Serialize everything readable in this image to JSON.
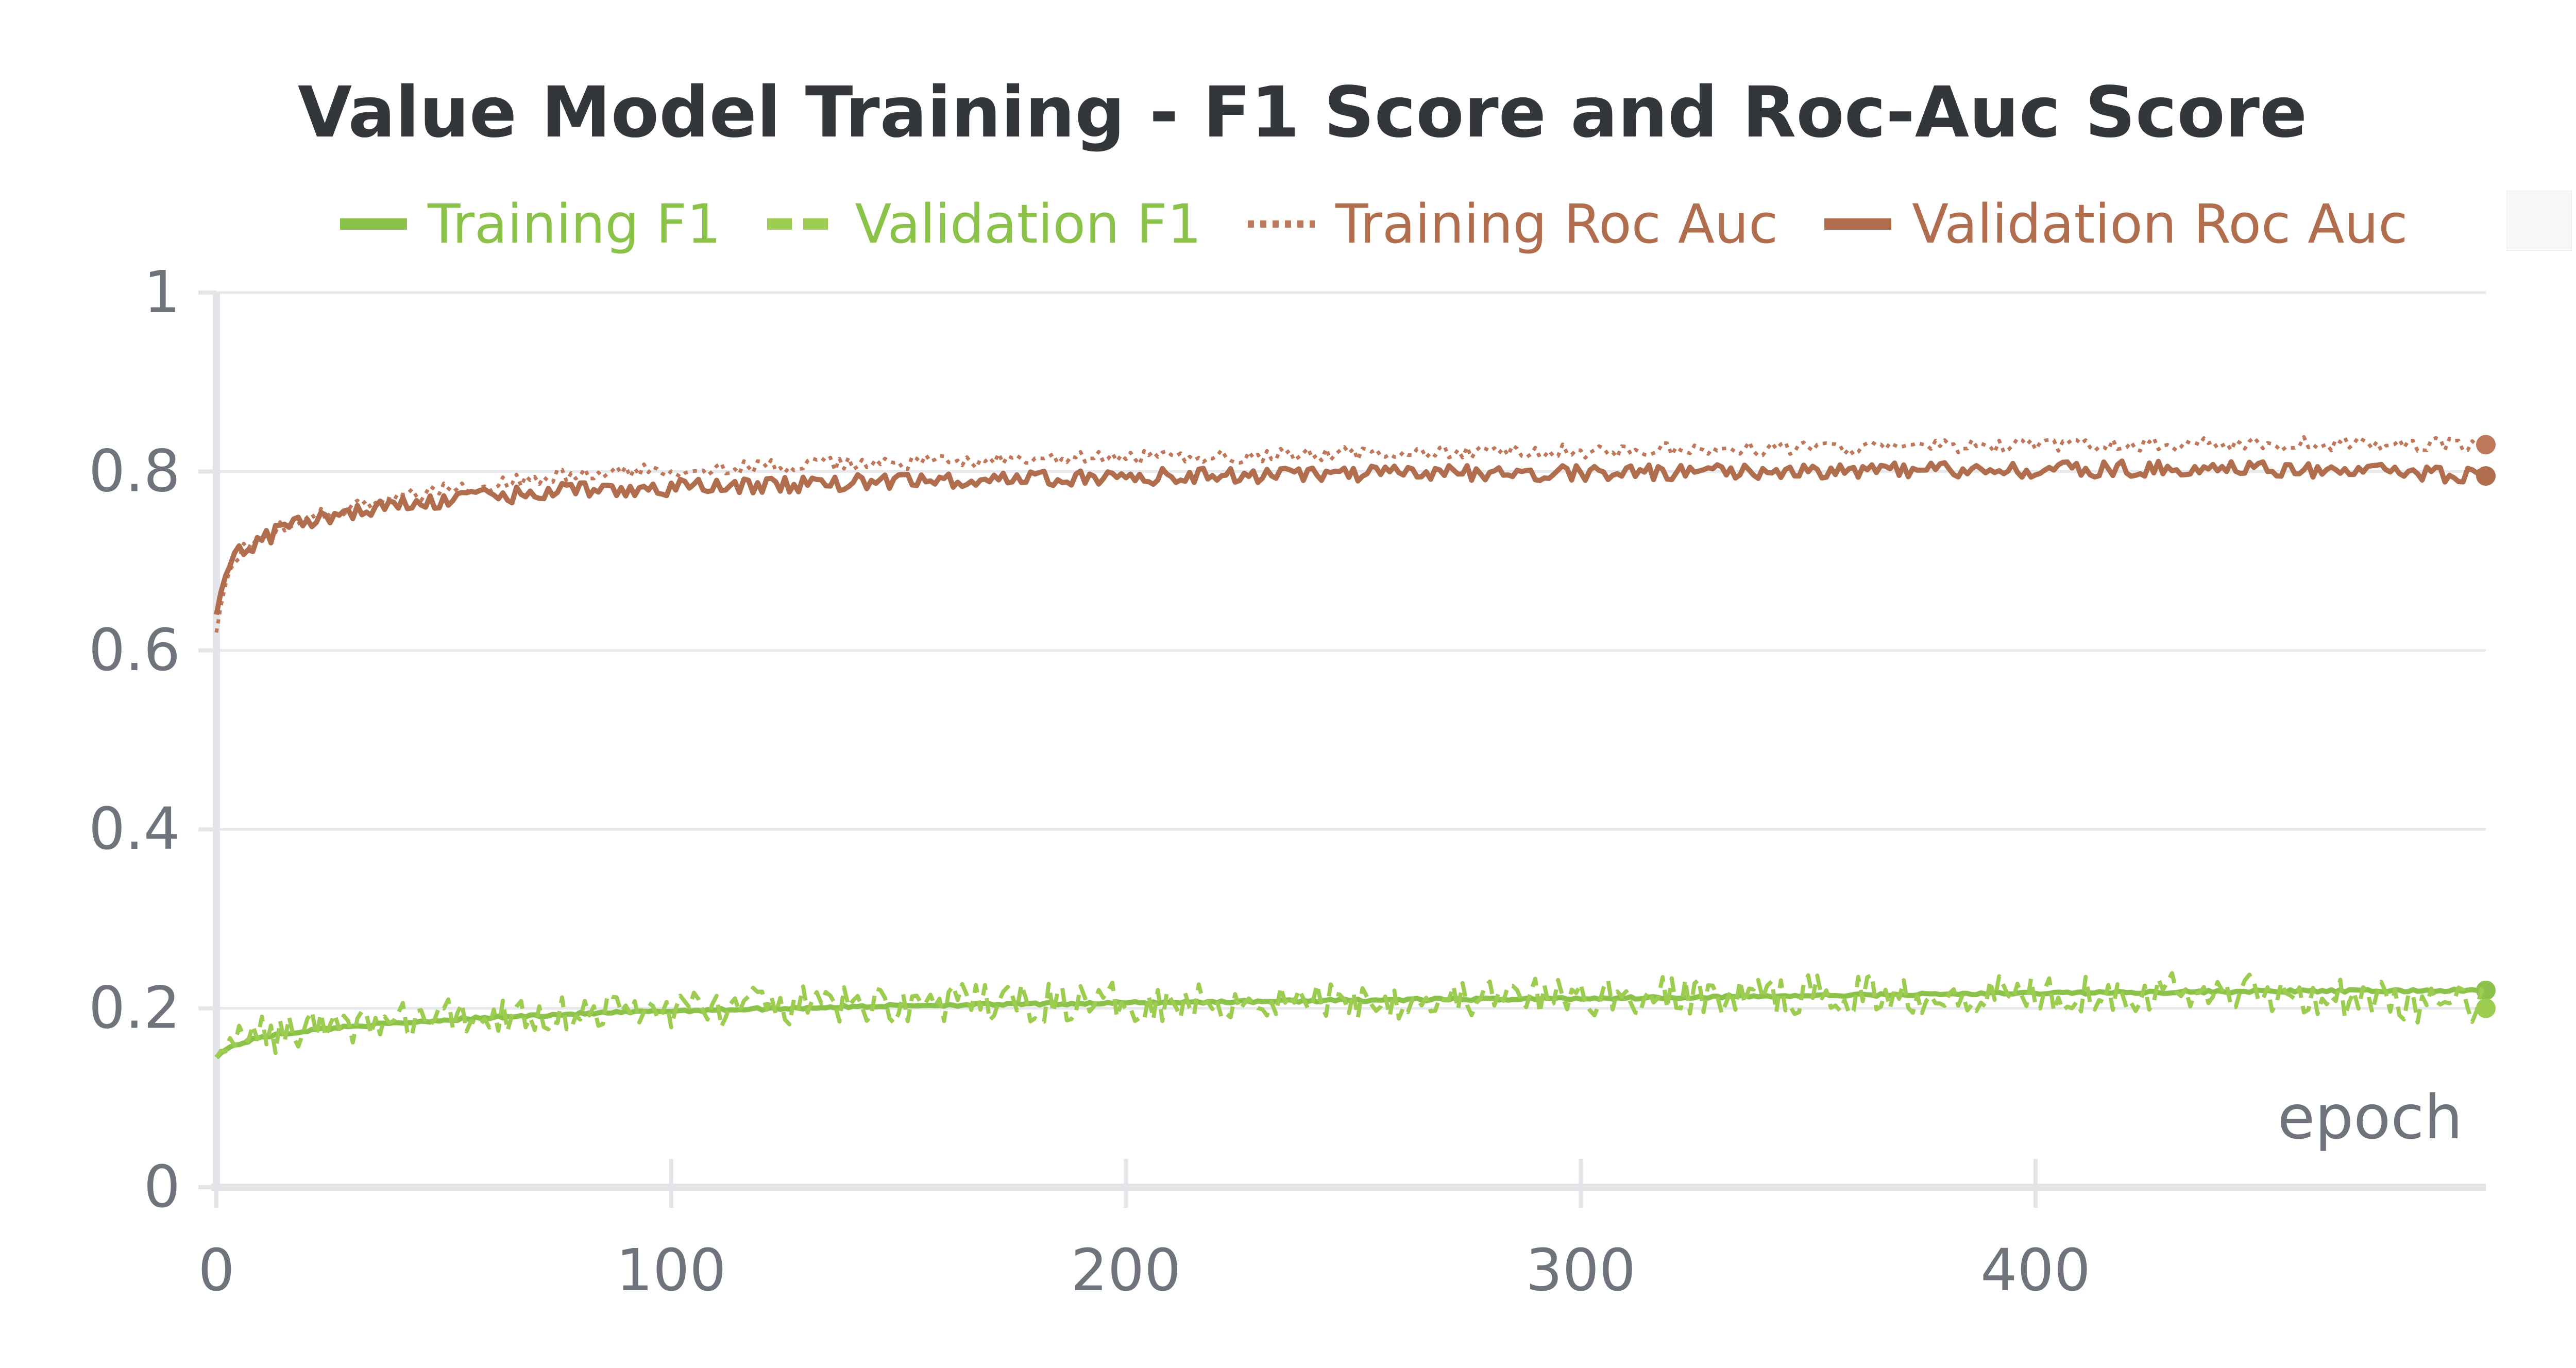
{
  "chart_data": {
    "type": "line",
    "title": "Value Model Training - F1 Score and Roc-Auc Score",
    "xlabel": "epoch",
    "ylabel": "",
    "xlim": [
      0,
      499
    ],
    "ylim": [
      0,
      1
    ],
    "xticks": [
      0,
      100,
      200,
      300,
      400
    ],
    "yticks": [
      0,
      0.2,
      0.4,
      0.6,
      0.8,
      1
    ],
    "ytick_labels": [
      "0",
      "0.2",
      "0.4",
      "0.6",
      "0.8",
      "1"
    ],
    "grid": true,
    "legend_position": "top",
    "series": [
      {
        "name": "Training F1",
        "color": "#8bc34a",
        "style": "solid",
        "x": [
          0,
          2,
          5,
          10,
          20,
          30,
          50,
          75,
          100,
          150,
          200,
          250,
          300,
          350,
          400,
          450,
          499
        ],
        "values": [
          0.145,
          0.155,
          0.16,
          0.168,
          0.175,
          0.18,
          0.187,
          0.193,
          0.197,
          0.203,
          0.206,
          0.209,
          0.211,
          0.214,
          0.217,
          0.219,
          0.22
        ]
      },
      {
        "name": "Validation F1",
        "color": "#9ccc50",
        "style": "dashed",
        "x": [
          0,
          2,
          5,
          10,
          20,
          30,
          50,
          75,
          100,
          150,
          200,
          250,
          300,
          350,
          400,
          450,
          499
        ],
        "values": [
          0.145,
          0.16,
          0.163,
          0.17,
          0.177,
          0.182,
          0.189,
          0.195,
          0.199,
          0.205,
          0.207,
          0.21,
          0.212,
          0.215,
          0.218,
          0.219,
          0.2
        ]
      },
      {
        "name": "Training Roc Auc",
        "color": "#c0785a",
        "style": "dotted",
        "x": [
          0,
          2,
          5,
          10,
          20,
          30,
          50,
          75,
          100,
          150,
          200,
          250,
          300,
          350,
          400,
          450,
          499
        ],
        "values": [
          0.62,
          0.68,
          0.71,
          0.73,
          0.75,
          0.76,
          0.78,
          0.795,
          0.802,
          0.81,
          0.815,
          0.82,
          0.823,
          0.826,
          0.829,
          0.831,
          0.83
        ]
      },
      {
        "name": "Validation Roc Auc",
        "color": "#b06e4e",
        "style": "solid",
        "x": [
          0,
          2,
          5,
          10,
          20,
          30,
          50,
          75,
          100,
          150,
          200,
          250,
          300,
          350,
          400,
          450,
          499
        ],
        "values": [
          0.64,
          0.69,
          0.71,
          0.725,
          0.745,
          0.755,
          0.768,
          0.778,
          0.782,
          0.789,
          0.794,
          0.797,
          0.799,
          0.801,
          0.802,
          0.804,
          0.795
        ]
      }
    ]
  }
}
